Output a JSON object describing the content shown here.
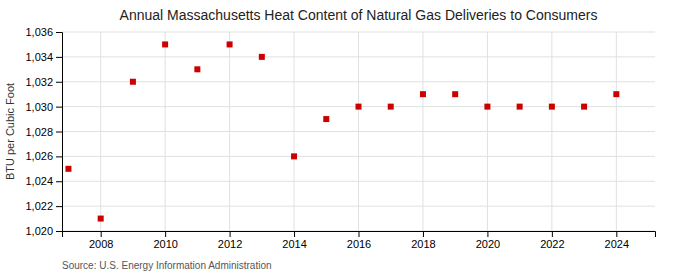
{
  "chart_data": {
    "type": "scatter",
    "title": "Annual Massachusetts Heat Content of Natural Gas Deliveries to Consumers",
    "ylabel": "BTU per Cubic Foot",
    "source": "Source: U.S. Energy Information Administration",
    "x": [
      2007,
      2008,
      2009,
      2010,
      2011,
      2012,
      2013,
      2014,
      2015,
      2016,
      2017,
      2018,
      2019,
      2020,
      2021,
      2022,
      2023,
      2024
    ],
    "values": [
      1025,
      1021,
      1032,
      1035,
      1033,
      1035,
      1034,
      1026,
      1029,
      1030,
      1030,
      1031,
      1031,
      1030,
      1030,
      1030,
      1030,
      1031
    ],
    "color": "#cc0000",
    "marker": "square",
    "grid": true,
    "xlim": [
      2006.8,
      2025.2
    ],
    "xticks": [
      2008,
      2010,
      2012,
      2014,
      2016,
      2018,
      2020,
      2022,
      2024
    ],
    "ylim": [
      1020,
      1036
    ],
    "yticks": [
      {
        "value": 1020,
        "label": "1,020"
      },
      {
        "value": 1022,
        "label": "1,022"
      },
      {
        "value": 1024,
        "label": "1,024"
      },
      {
        "value": 1026,
        "label": "1,026"
      },
      {
        "value": 1028,
        "label": "1,028"
      },
      {
        "value": 1030,
        "label": "1,030"
      },
      {
        "value": 1032,
        "label": "1,032"
      },
      {
        "value": 1034,
        "label": "1,034"
      },
      {
        "value": 1036,
        "label": "1,036"
      }
    ]
  }
}
